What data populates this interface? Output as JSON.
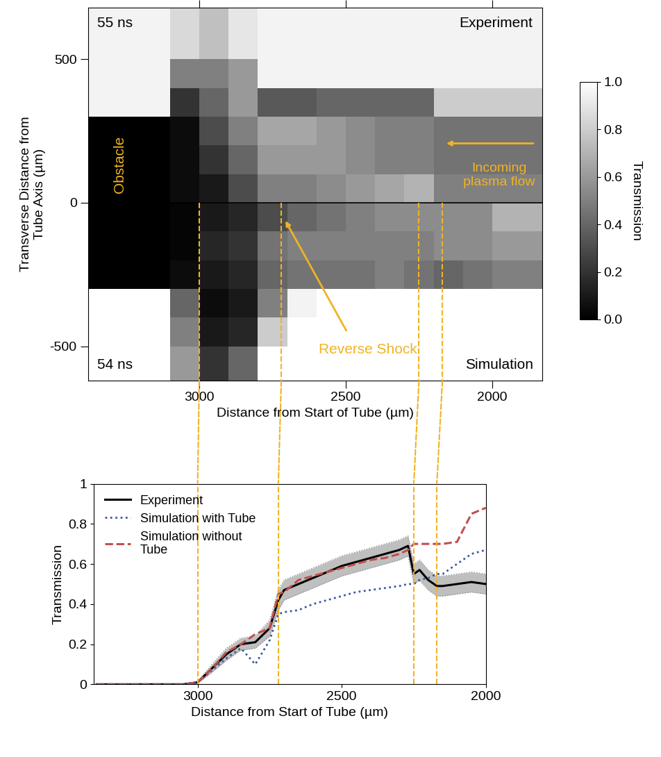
{
  "chart_data": [
    {
      "type": "image",
      "xlabel": "Distance from Start of Tube (µm)",
      "ylabel": "Transverse Distance from\nTube Axis (µm)",
      "xlim": [
        3380,
        1830
      ],
      "ylim": [
        -620,
        680
      ],
      "xticks": [
        3000,
        2500,
        2000
      ],
      "yticks": [
        -500,
        0,
        500
      ],
      "divider": 0,
      "guide_lines": [
        3000,
        2720,
        2250,
        2170
      ],
      "annotations": {
        "top_left": "55 ns",
        "top_right": "Experiment",
        "bottom_left": "54 ns",
        "bottom_right": "Simulation",
        "obstacle": "Obstacle",
        "flow": "Incoming\nplasma flow",
        "shock": "Reverse Shock"
      },
      "annotation_color": "#f0b323",
      "x_edges": [
        3400,
        3300,
        3200,
        3100,
        3000,
        2900,
        2800,
        2700,
        2600,
        2500,
        2400,
        2300,
        2200,
        2100,
        2000,
        1900,
        1800
      ],
      "y_edges": [
        -620,
        -500,
        -400,
        -300,
        -200,
        -100,
        0,
        100,
        200,
        300,
        400,
        500,
        680
      ],
      "cells": [
        [
          1,
          1,
          1,
          0.6,
          0.2,
          0.4,
          1,
          1,
          1,
          1,
          1,
          1,
          1,
          1,
          1,
          1
        ],
        [
          1,
          1,
          1,
          0.5,
          0.1,
          0.15,
          0.8,
          1,
          1,
          1,
          1,
          1,
          1,
          1,
          1,
          1
        ],
        [
          1,
          1,
          1,
          0.4,
          0.05,
          0.1,
          0.5,
          0.95,
          1,
          1,
          1,
          1,
          1,
          1,
          1,
          1
        ],
        [
          0,
          0,
          0,
          0.05,
          0.1,
          0.15,
          0.4,
          0.45,
          0.45,
          0.45,
          0.5,
          0.45,
          0.4,
          0.45,
          0.5,
          0.5
        ],
        [
          0,
          0,
          0,
          0.02,
          0.15,
          0.2,
          0.45,
          0.5,
          0.5,
          0.5,
          0.5,
          0.5,
          0.55,
          0.55,
          0.6,
          0.6
        ],
        [
          0,
          0,
          0,
          0.02,
          0.1,
          0.15,
          0.3,
          0.4,
          0.45,
          0.5,
          0.55,
          0.55,
          0.55,
          0.55,
          0.7,
          0.7
        ],
        [
          0,
          0,
          0,
          0.05,
          0.1,
          0.3,
          0.5,
          0.5,
          0.55,
          0.6,
          0.65,
          0.7,
          0.5,
          0.5,
          0.5,
          0.5
        ],
        [
          0,
          0,
          0,
          0.05,
          0.2,
          0.4,
          0.6,
          0.6,
          0.6,
          0.55,
          0.5,
          0.5,
          0.45,
          0.45,
          0.45,
          0.45
        ],
        [
          0,
          0,
          0,
          0.05,
          0.3,
          0.5,
          0.65,
          0.65,
          0.6,
          0.55,
          0.5,
          0.5,
          0.45,
          0.45,
          0.45,
          0.45
        ],
        [
          0.95,
          0.95,
          0.95,
          0.2,
          0.4,
          0.6,
          0.35,
          0.35,
          0.4,
          0.4,
          0.4,
          0.4,
          0.8,
          0.8,
          0.8,
          0.8
        ],
        [
          0.95,
          0.95,
          0.95,
          0.5,
          0.5,
          0.6,
          0.95,
          0.95,
          0.95,
          0.95,
          0.95,
          0.95,
          0.95,
          0.95,
          0.95,
          0.95
        ],
        [
          0.95,
          0.95,
          0.95,
          0.85,
          0.75,
          0.9,
          0.95,
          0.95,
          0.95,
          0.95,
          0.95,
          0.95,
          0.95,
          0.95,
          0.95,
          0.95
        ]
      ],
      "colorbar": {
        "label": "Transmission",
        "clim": [
          0,
          1
        ],
        "ticks": [
          {
            "value": 0,
            "label": "0.0"
          },
          {
            "value": 0.2,
            "label": "0.2"
          },
          {
            "value": 0.4,
            "label": "0.4"
          },
          {
            "value": 0.6,
            "label": "0.6"
          },
          {
            "value": 0.8,
            "label": "0.8"
          },
          {
            "value": 1,
            "label": "1.0"
          }
        ]
      }
    },
    {
      "type": "line",
      "xlabel": "Distance from Start of Tube (µm)",
      "ylabel": "Transmission",
      "xlim": [
        3360,
        2000
      ],
      "ylim": [
        0,
        1
      ],
      "xticks": [
        3000,
        2500,
        2000
      ],
      "yticks": [
        0,
        0.2,
        0.4,
        0.6,
        0.8,
        1
      ],
      "legend": "upper left",
      "x": [
        3350,
        3250,
        3150,
        3100,
        3050,
        3000,
        2950,
        2900,
        2850,
        2800,
        2750,
        2720,
        2700,
        2650,
        2600,
        2550,
        2500,
        2450,
        2400,
        2350,
        2300,
        2270,
        2250,
        2230,
        2200,
        2170,
        2150,
        2100,
        2050,
        2000
      ],
      "series": [
        {
          "name": "Experiment",
          "color": "#000000",
          "line_style": "solid",
          "values": [
            0,
            0,
            0,
            0,
            0,
            0.01,
            0.08,
            0.15,
            0.2,
            0.21,
            0.28,
            0.42,
            0.47,
            0.5,
            0.53,
            0.56,
            0.59,
            0.61,
            0.63,
            0.65,
            0.67,
            0.69,
            0.55,
            0.57,
            0.52,
            0.49,
            0.49,
            0.5,
            0.51,
            0.5
          ],
          "error": [
            0,
            0,
            0,
            0,
            0,
            0.005,
            0.02,
            0.03,
            0.03,
            0.03,
            0.04,
            0.05,
            0.05,
            0.05,
            0.05,
            0.05,
            0.05,
            0.05,
            0.05,
            0.05,
            0.05,
            0.05,
            0.05,
            0.05,
            0.05,
            0.05,
            0.05,
            0.05,
            0.05,
            0.05
          ]
        },
        {
          "name": "Simulation with Tube",
          "color": "#3b5a9a",
          "line_style": "dotted",
          "values": [
            0,
            0,
            0,
            0,
            0,
            0.01,
            0.07,
            0.13,
            0.18,
            0.1,
            0.22,
            0.35,
            0.36,
            0.37,
            0.4,
            0.42,
            0.44,
            0.46,
            0.47,
            0.48,
            0.49,
            0.5,
            0.5,
            0.52,
            0.53,
            0.55,
            0.55,
            0.6,
            0.65,
            0.67
          ]
        },
        {
          "name": "Simulation without\nTube",
          "color": "#c0504d",
          "line_style": "dashed",
          "values": [
            0,
            0,
            0,
            0,
            0,
            0.01,
            0.08,
            0.16,
            0.2,
            0.25,
            0.28,
            0.45,
            0.46,
            0.52,
            0.54,
            0.56,
            0.58,
            0.6,
            0.62,
            0.63,
            0.65,
            0.67,
            0.7,
            0.7,
            0.7,
            0.7,
            0.7,
            0.71,
            0.85,
            0.88
          ]
        }
      ]
    }
  ]
}
